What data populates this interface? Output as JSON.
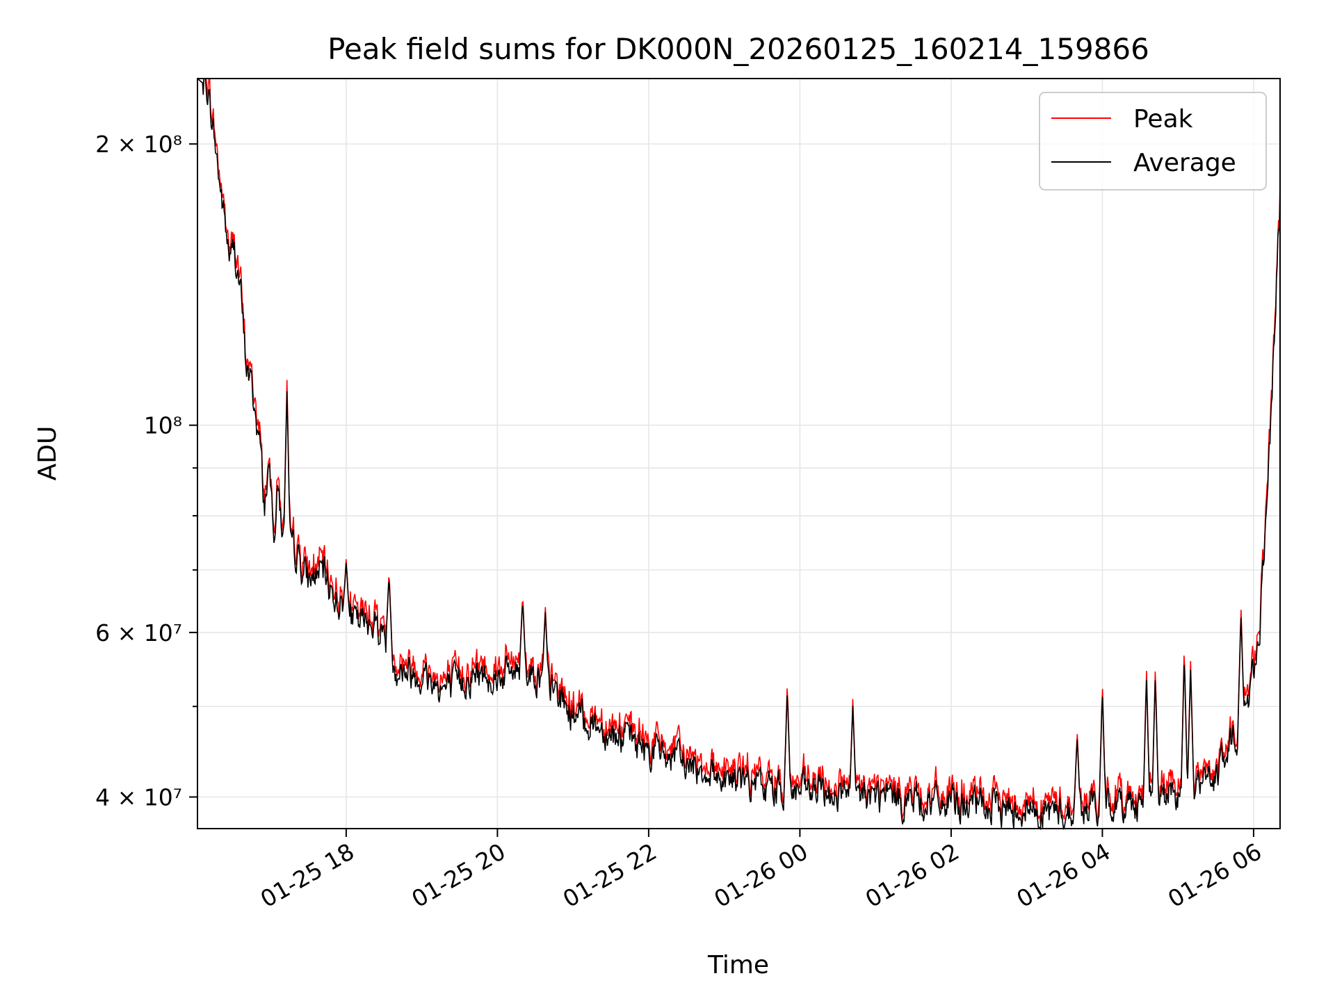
{
  "chart_data": {
    "type": "line",
    "title": "Peak field sums for DK000N_20260125_160214_159866",
    "xlabel": "Time",
    "ylabel": "ADU",
    "y_scale": "log",
    "ylim": [
      37000000,
      235000000
    ],
    "xlim": [
      "2026-01-25 16:02",
      "2026-01-26 06:21"
    ],
    "x_ticks": [
      {
        "t": "2026-01-25 18:00",
        "label": "01-25 18"
      },
      {
        "t": "2026-01-25 20:00",
        "label": "01-25 20"
      },
      {
        "t": "2026-01-25 22:00",
        "label": "01-25 22"
      },
      {
        "t": "2026-01-26 00:00",
        "label": "01-26 00"
      },
      {
        "t": "2026-01-26 02:00",
        "label": "01-26 02"
      },
      {
        "t": "2026-01-26 04:00",
        "label": "01-26 04"
      },
      {
        "t": "2026-01-26 06:00",
        "label": "01-26 06"
      }
    ],
    "y_ticks": [
      {
        "v": 40000000,
        "label": "4 × 10⁷"
      },
      {
        "v": 60000000,
        "label": "6 × 10⁷"
      },
      {
        "v": 100000000,
        "label": "10⁸"
      },
      {
        "v": 200000000,
        "label": "2 × 10⁸"
      }
    ],
    "y_minor_ticks": [
      50000000,
      70000000,
      80000000,
      90000000
    ],
    "grid": true,
    "legend": {
      "position": "top-right",
      "entries": [
        "Peak",
        "Average"
      ]
    },
    "series": [
      {
        "name": "Average",
        "color": "#000000",
        "points": [
          [
            "2026-01-25 16:02",
            235000000
          ],
          [
            "2026-01-25 16:10",
            230000000
          ],
          [
            "2026-01-25 16:15",
            205000000
          ],
          [
            "2026-01-25 16:20",
            180000000
          ],
          [
            "2026-01-25 16:25",
            160000000
          ],
          [
            "2026-01-25 16:28",
            150000000
          ],
          [
            "2026-01-25 16:31",
            155000000
          ],
          [
            "2026-01-25 16:36",
            140000000
          ],
          [
            "2026-01-25 16:40",
            118000000
          ],
          [
            "2026-01-25 16:45",
            110000000
          ],
          [
            "2026-01-25 16:52",
            94000000
          ],
          [
            "2026-01-25 16:55",
            82000000
          ],
          [
            "2026-01-25 16:58",
            90000000
          ],
          [
            "2026-01-25 17:03",
            78000000
          ],
          [
            "2026-01-25 17:06",
            86000000
          ],
          [
            "2026-01-25 17:10",
            76000000
          ],
          [
            "2026-01-25 17:20",
            73000000
          ],
          [
            "2026-01-25 17:30",
            68000000
          ],
          [
            "2026-01-25 17:40",
            70000000
          ],
          [
            "2026-01-25 17:50",
            66000000
          ],
          [
            "2026-01-25 18:00",
            63000000
          ],
          [
            "2026-01-25 18:10",
            61000000
          ],
          [
            "2026-01-25 18:20",
            62000000
          ],
          [
            "2026-01-25 18:30",
            60000000
          ],
          [
            "2026-01-25 18:40",
            55000000
          ],
          [
            "2026-01-25 19:00",
            54000000
          ],
          [
            "2026-01-25 19:20",
            52000000
          ],
          [
            "2026-01-25 19:40",
            54000000
          ],
          [
            "2026-01-25 20:00",
            54000000
          ],
          [
            "2026-01-25 20:20",
            55000000
          ],
          [
            "2026-01-25 20:40",
            53000000
          ],
          [
            "2026-01-25 21:00",
            49000000
          ],
          [
            "2026-01-25 21:30",
            47000000
          ],
          [
            "2026-01-25 22:00",
            45000000
          ],
          [
            "2026-01-25 22:20",
            44000000
          ],
          [
            "2026-01-25 22:40",
            43000000
          ],
          [
            "2026-01-25 23:00",
            42000000
          ],
          [
            "2026-01-25 23:30",
            41000000
          ],
          [
            "2026-01-26 00:00",
            40500000
          ],
          [
            "2026-01-26 01:00",
            40000000
          ],
          [
            "2026-01-26 02:00",
            39300000
          ],
          [
            "2026-01-26 03:00",
            38800000
          ],
          [
            "2026-01-26 03:30",
            38500000
          ],
          [
            "2026-01-26 04:00",
            39300000
          ],
          [
            "2026-01-26 04:30",
            39500000
          ],
          [
            "2026-01-26 05:00",
            40500000
          ],
          [
            "2026-01-26 05:30",
            42000000
          ],
          [
            "2026-01-26 05:45",
            46000000
          ],
          [
            "2026-01-26 05:55",
            50000000
          ],
          [
            "2026-01-26 06:00",
            55000000
          ],
          [
            "2026-01-26 06:05",
            62000000
          ],
          [
            "2026-01-26 06:10",
            80000000
          ],
          [
            "2026-01-26 06:14",
            100000000
          ],
          [
            "2026-01-26 06:17",
            130000000
          ],
          [
            "2026-01-26 06:21",
            175000000
          ]
        ]
      },
      {
        "name": "Peak",
        "color": "#ff0000",
        "spikes": [
          [
            "2026-01-25 17:13",
            112000000
          ],
          [
            "2026-01-25 18:00",
            72000000
          ],
          [
            "2026-01-25 18:34",
            70000000
          ],
          [
            "2026-01-25 20:20",
            66000000
          ],
          [
            "2026-01-25 20:38",
            64000000
          ],
          [
            "2026-01-25 23:50",
            53000000
          ],
          [
            "2026-01-26 00:42",
            51000000
          ],
          [
            "2026-01-26 03:40",
            47000000
          ],
          [
            "2026-01-26 04:00",
            53000000
          ],
          [
            "2026-01-26 04:35",
            55000000
          ],
          [
            "2026-01-26 04:42",
            55000000
          ],
          [
            "2026-01-26 05:05",
            58000000
          ],
          [
            "2026-01-26 05:10",
            56000000
          ],
          [
            "2026-01-26 05:50",
            64000000
          ]
        ]
      }
    ]
  }
}
